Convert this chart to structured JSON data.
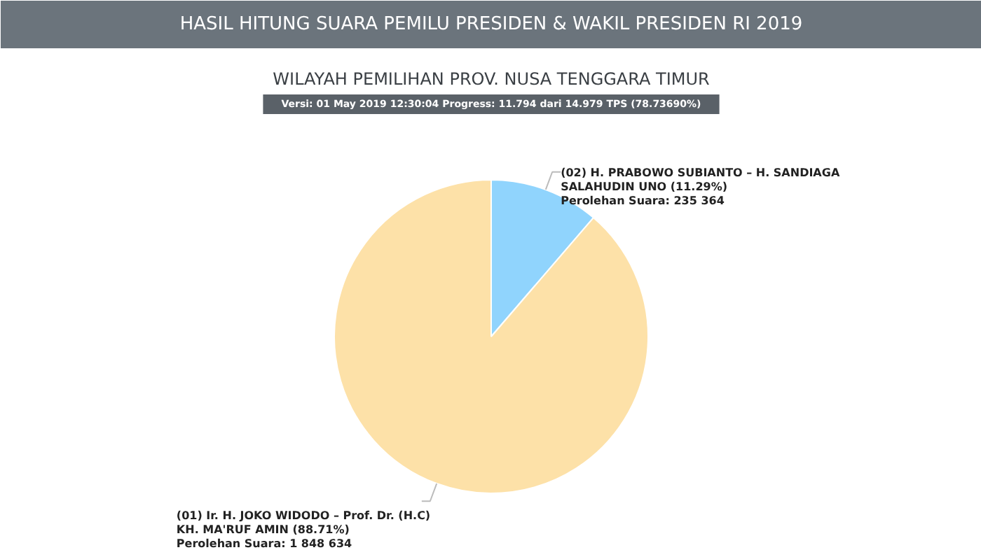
{
  "chart_data": {
    "type": "pie",
    "title": "HASIL HITUNG SUARA PEMILU PRESIDEN & WAKIL PRESIDEN RI 2019",
    "subtitle": "WILAYAH PEMILIHAN PROV. NUSA TENGGARA TIMUR",
    "annotations": [
      "Versi: 01 May 2019 12:30:04 Progress: 11.794 dari 14.979 TPS (78.73690%)"
    ],
    "categories": [
      "(02) H. PRABOWO SUBIANTO – H. SANDIAGA SALAHUDIN UNO (11.29%)",
      "(01) Ir. H. JOKO WIDODO – Prof. Dr. (H.C) KH. MA'RUF AMIN (88.71%)"
    ],
    "values": [
      235364,
      1848634
    ],
    "value_labels": [
      "Perolehan Suara: 235 364",
      "Perolehan Suara: 1 848 634"
    ],
    "colors": [
      "#90d4fd",
      "#fde1a8"
    ]
  }
}
